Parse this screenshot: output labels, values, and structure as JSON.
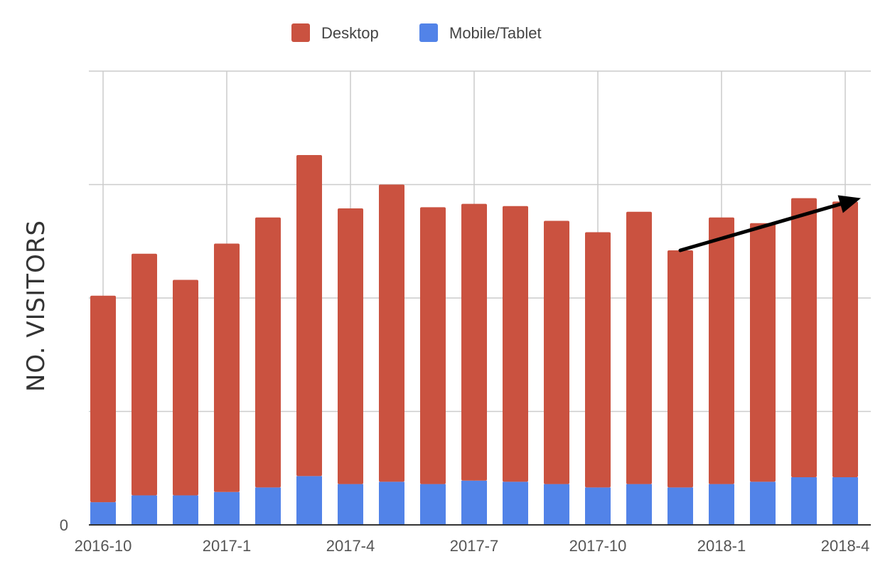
{
  "chart_data": {
    "type": "bar",
    "stacked": true,
    "categories": [
      "2016-10",
      "2016-11",
      "2016-12",
      "2017-1",
      "2017-2",
      "2017-3",
      "2017-4",
      "2017-5",
      "2017-6",
      "2017-7",
      "2017-8",
      "2017-9",
      "2017-10",
      "2017-11",
      "2017-12",
      "2018-1",
      "2018-2",
      "2018-3",
      "2018-4"
    ],
    "x_tick_labels": [
      "2016-10",
      "2017-1",
      "2017-4",
      "2017-7",
      "2017-10",
      "2018-1",
      "2018-4"
    ],
    "y_tick_labels": [
      "0"
    ],
    "series": [
      {
        "name": "Mobile/Tablet",
        "color": "#5283e8",
        "values": [
          20,
          26,
          26,
          29,
          33,
          43,
          36,
          38,
          36,
          39,
          38,
          36,
          33,
          36,
          33,
          36,
          38,
          42,
          42
        ]
      },
      {
        "name": "Desktop",
        "color": "#ca5240",
        "values": [
          182,
          213,
          190,
          219,
          238,
          283,
          243,
          262,
          244,
          244,
          243,
          232,
          225,
          240,
          209,
          235,
          228,
          246,
          243
        ]
      }
    ],
    "ylabel": "NO. VISITORS",
    "xlabel": "",
    "ylim": [
      0,
      400
    ],
    "grid": true,
    "legend": "top-center",
    "annotation": {
      "type": "arrow",
      "from": {
        "x": "2017-12",
        "y": 242
      },
      "to": {
        "x": "2018-4",
        "y": 288
      },
      "color": "#000000"
    }
  }
}
